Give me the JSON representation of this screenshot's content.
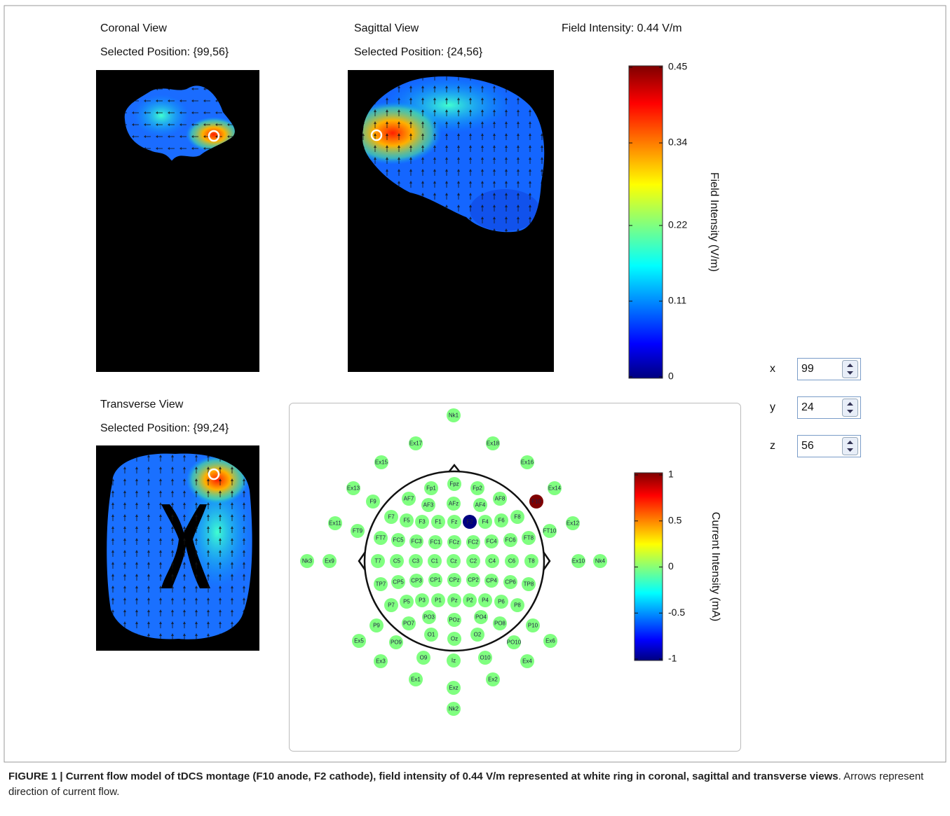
{
  "coronal": {
    "title": "Coronal View",
    "position": "Selected Position: {99,56}"
  },
  "sagittal": {
    "title": "Sagittal View",
    "position": "Selected Position: {24,56}"
  },
  "transverse": {
    "title": "Transverse View",
    "position": "Selected Position: {99,24}"
  },
  "field_intensity": "Field Intensity: 0.44 V/m",
  "field_colorbar": {
    "label": "Field Intensity (V/m)",
    "ylim": [
      0,
      0.45
    ],
    "yticks": [
      0,
      0.11,
      0.22,
      0.34,
      0.45
    ]
  },
  "current_colorbar": {
    "label": "Current Intensity (mA)",
    "ylim": [
      -1,
      1
    ],
    "yticks": [
      -1,
      -0.5,
      0,
      0.5,
      1
    ]
  },
  "coordinates": [
    {
      "label": "x",
      "value": 99
    },
    {
      "label": "y",
      "value": 24
    },
    {
      "label": "z",
      "value": 56
    }
  ],
  "electrodes": {
    "labels": [
      "Nk1",
      "Ex17",
      "Ex18",
      "Ex15",
      "Ex16",
      "Ex13",
      "Ex14",
      "Fp1",
      "Fpz",
      "Fp2",
      "F9",
      "AF7",
      "AF8",
      "F10",
      "AF3",
      "AFz",
      "AF4",
      "F7",
      "F5",
      "F3",
      "F1",
      "Fz",
      "F2",
      "F4",
      "F6",
      "F8",
      "Ex11",
      "FT9",
      "FT10",
      "Ex12",
      "FT7",
      "FC5",
      "FC3",
      "FC1",
      "FCz",
      "FC2",
      "FC4",
      "FC6",
      "FT8",
      "Nk3",
      "Ex9",
      "T7",
      "C5",
      "C3",
      "C1",
      "Cz",
      "C2",
      "C4",
      "C6",
      "T8",
      "Ex10",
      "Nk4",
      "TP7",
      "CP5",
      "CP3",
      "CP1",
      "CPz",
      "CP2",
      "CP4",
      "CP6",
      "TP8",
      "P7",
      "P5",
      "P3",
      "P1",
      "Pz",
      "P2",
      "P4",
      "P6",
      "P8",
      "P9",
      "PO7",
      "PO3",
      "POz",
      "PO4",
      "PO8",
      "P10",
      "Ex5",
      "PO9",
      "O1",
      "Oz",
      "O2",
      "PO10",
      "Ex6",
      "Ex3",
      "O9",
      "Iz",
      "O10",
      "Ex4",
      "Ex1",
      "Ex2",
      "Exz",
      "Nk2"
    ],
    "currents": [
      0,
      0,
      0,
      0,
      0,
      0,
      0,
      0,
      0,
      0,
      0,
      0,
      0,
      1,
      0,
      0,
      0,
      0,
      0,
      0,
      0,
      0,
      -1,
      0,
      0,
      0,
      0,
      0,
      0,
      0,
      0,
      0,
      0,
      0,
      0,
      0,
      0,
      0,
      0,
      0,
      0,
      0,
      0,
      0,
      0,
      0,
      0,
      0,
      0,
      0,
      0,
      0,
      0,
      0,
      0,
      0,
      0,
      0,
      0,
      0,
      0,
      0,
      0,
      0,
      0,
      0,
      0,
      0,
      0,
      0,
      0,
      0,
      0,
      0,
      0,
      0,
      0,
      0,
      0,
      0,
      0,
      0,
      0,
      0,
      0,
      0,
      0,
      0,
      0,
      0,
      0,
      0,
      0
    ]
  },
  "caption": {
    "bold": "FIGURE 1 | Current flow model of tDCS montage (F10 anode, F2 cathode), field intensity of 0.44 V/m represented at white ring in coronal, sagittal and transverse views",
    "text": ". Arrows represent direction of current flow."
  }
}
